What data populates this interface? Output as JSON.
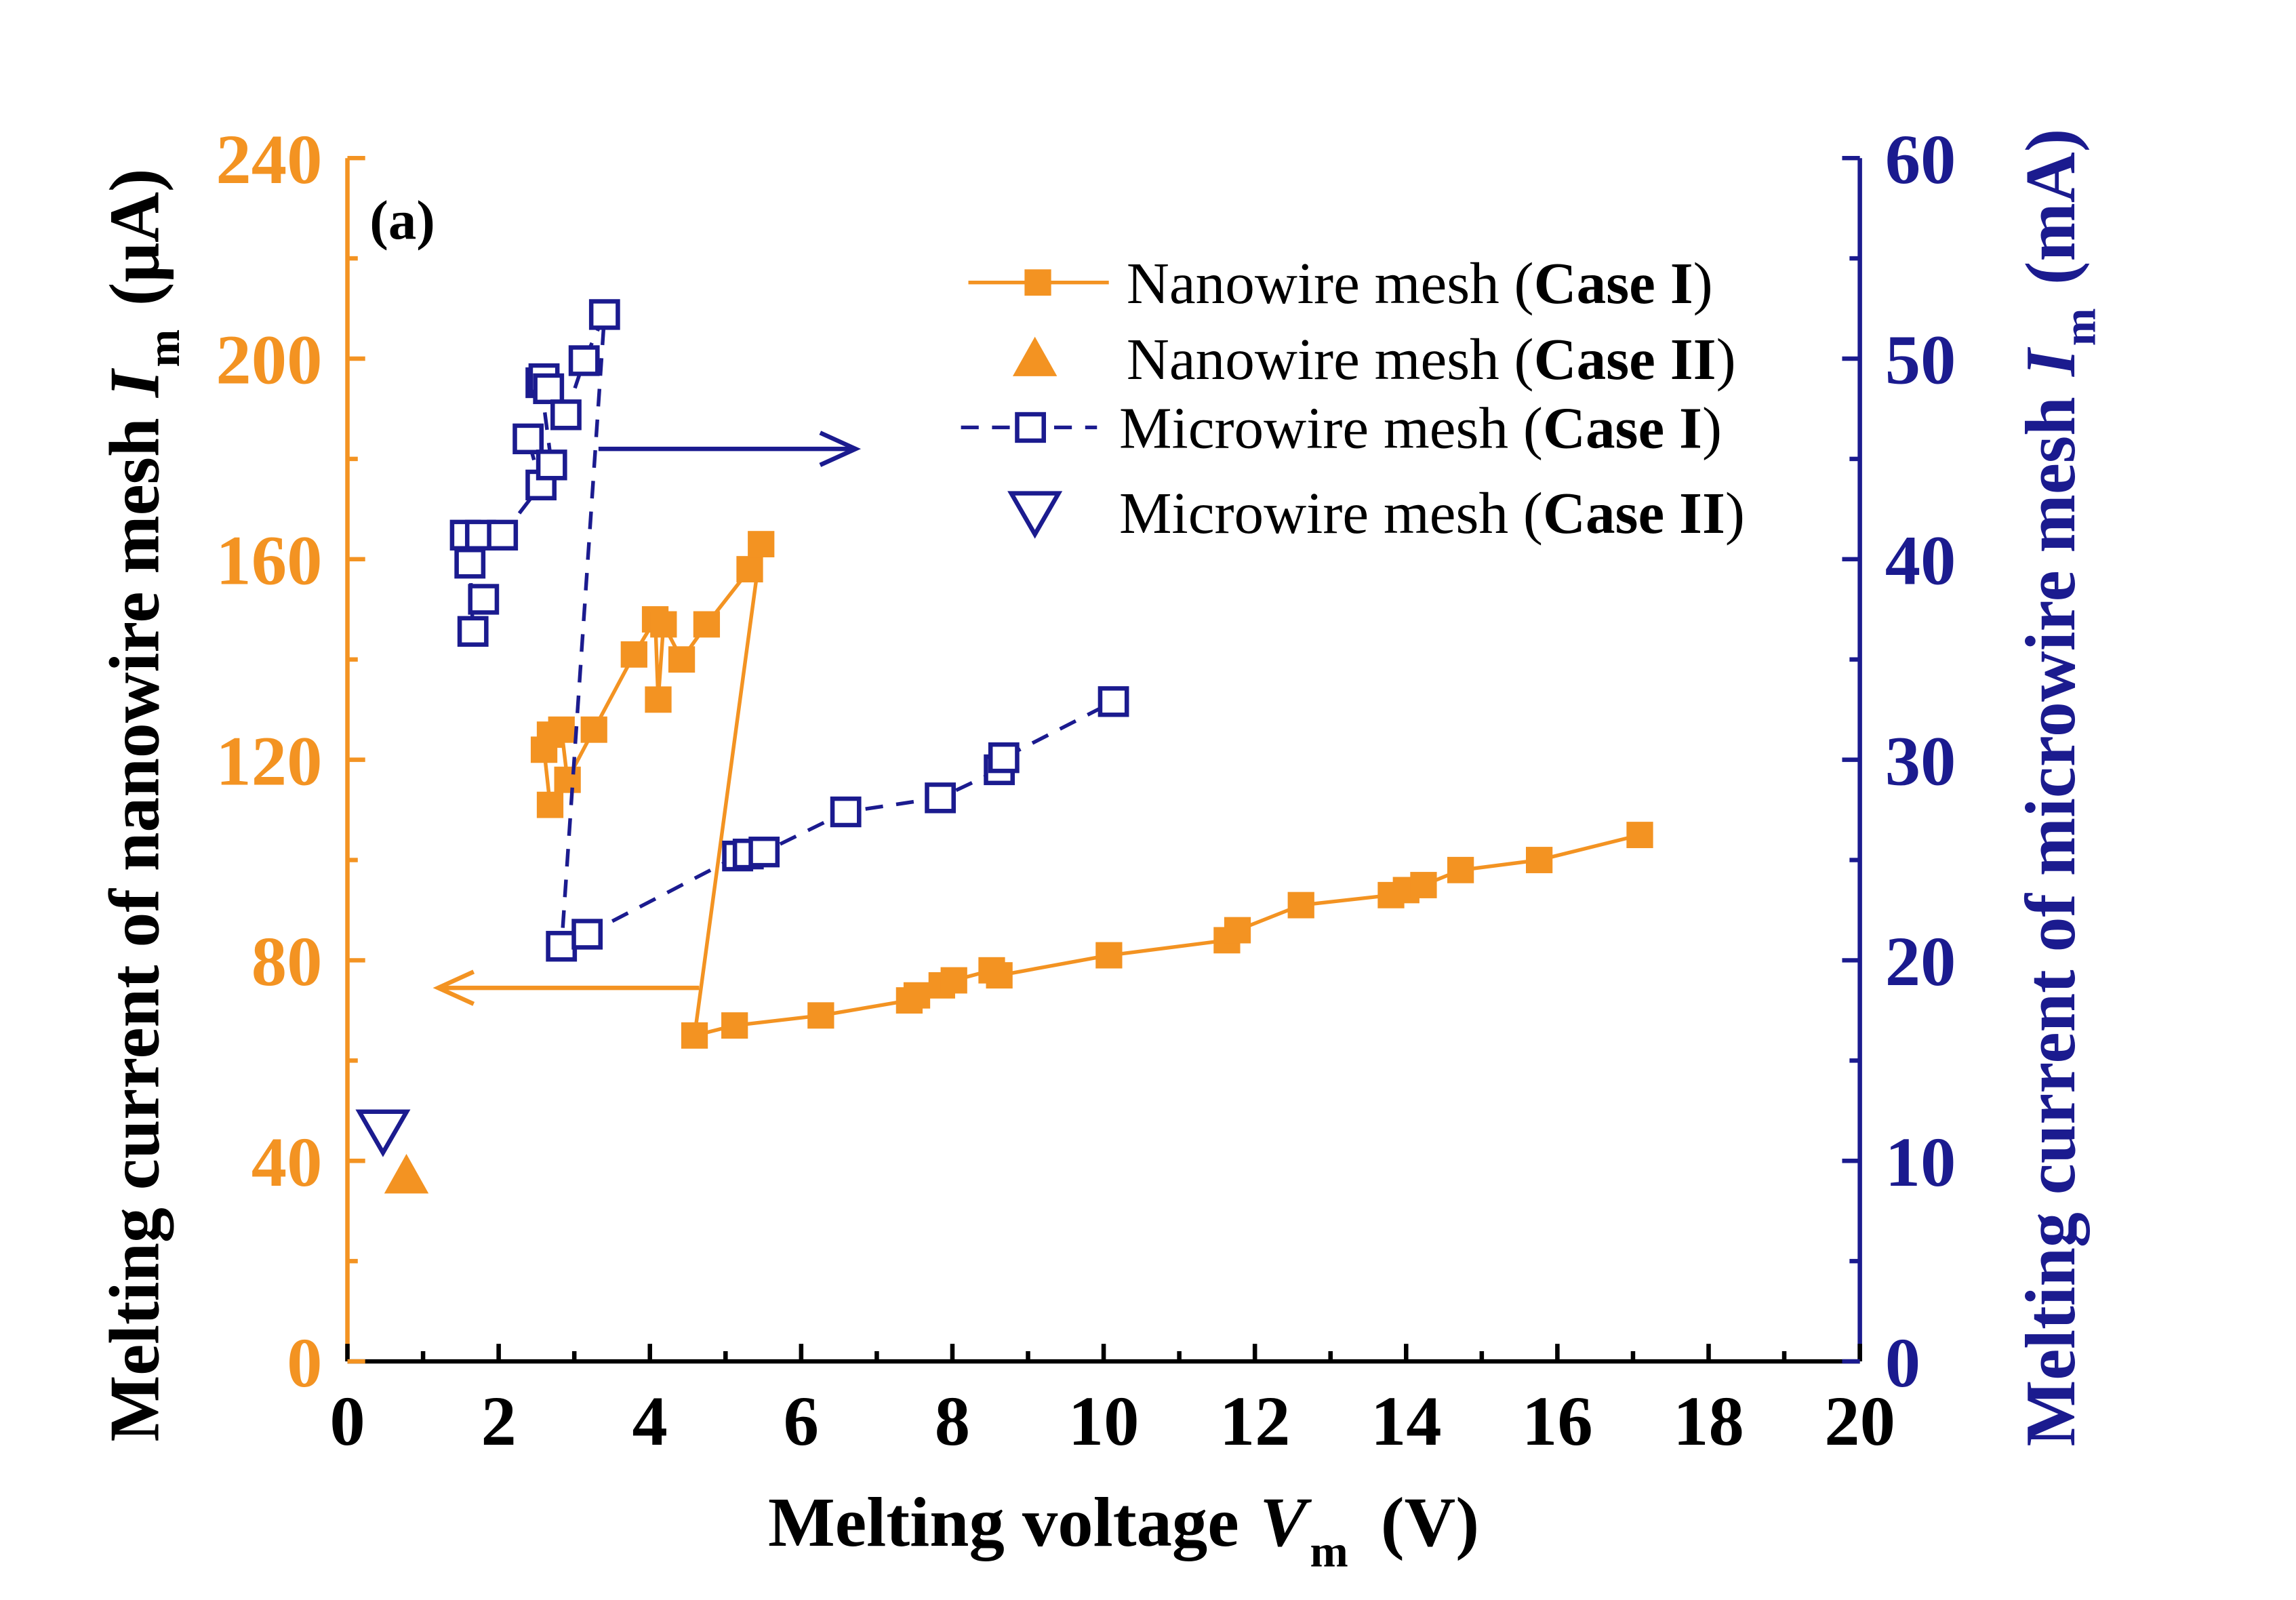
{
  "chart_data": {
    "type": "scatter",
    "panel_label": "(a)",
    "xlabel": {
      "text": "Melting voltage",
      "symbol": "V",
      "sub": "m",
      "unit": "(V)"
    },
    "ylabel_left": {
      "text": "Melting current of nanowire mesh",
      "symbol": "I",
      "sub": "m",
      "unit": "(μA)"
    },
    "ylabel_right": {
      "text": "Melting current of microwire mesh",
      "symbol": "I",
      "sub": "m",
      "unit": "(mA)"
    },
    "xlim": [
      0,
      20
    ],
    "ylim_left": [
      0,
      240
    ],
    "ylim_right": [
      0,
      60
    ],
    "xticks": [
      "0",
      "2",
      "4",
      "6",
      "8",
      "10",
      "12",
      "14",
      "16",
      "18",
      "20"
    ],
    "yticks_left": [
      "0",
      "40",
      "80",
      "120",
      "160",
      "200",
      "240"
    ],
    "yticks_right": [
      "0",
      "10",
      "20",
      "30",
      "40",
      "50",
      "60"
    ],
    "grid": false,
    "legend_position": "top-right",
    "left_axis_color": "#F39322",
    "right_axis_color": "#1B1B8F",
    "bottom_axis_color": "#000000",
    "axis_arrows": [
      {
        "axis": "left",
        "direction": "left",
        "color": "#F39322"
      },
      {
        "axis": "right",
        "direction": "right",
        "color": "#1B1B8F"
      }
    ],
    "series": [
      {
        "name": "Nanowire mesh (Case I)",
        "axis": "left",
        "marker": "filled-square",
        "line": "solid",
        "color": "#F39322",
        "points": [
          [
            2.68,
            111
          ],
          [
            2.6,
            122
          ],
          [
            2.68,
            125
          ],
          [
            2.83,
            126
          ],
          [
            2.91,
            116
          ],
          [
            3.26,
            126
          ],
          [
            3.79,
            141
          ],
          [
            4.07,
            148
          ],
          [
            4.11,
            132
          ],
          [
            4.18,
            147
          ],
          [
            4.42,
            140
          ],
          [
            4.75,
            147
          ],
          [
            5.32,
            158
          ],
          [
            5.47,
            163
          ],
          [
            4.59,
            65
          ],
          [
            5.12,
            67
          ],
          [
            6.26,
            69
          ],
          [
            7.43,
            72
          ],
          [
            7.53,
            73
          ],
          [
            7.86,
            75
          ],
          [
            8.02,
            76
          ],
          [
            8.52,
            78
          ],
          [
            8.62,
            77
          ],
          [
            10.07,
            81
          ],
          [
            11.63,
            84
          ],
          [
            11.77,
            86
          ],
          [
            12.61,
            91
          ],
          [
            13.8,
            93
          ],
          [
            14.0,
            94
          ],
          [
            14.23,
            95
          ],
          [
            14.72,
            98
          ],
          [
            15.76,
            100
          ],
          [
            17.09,
            105
          ]
        ]
      },
      {
        "name": "Nanowire mesh (Case II)",
        "axis": "left",
        "marker": "filled-triangle-up",
        "line": "none",
        "color": "#F39322",
        "points": [
          [
            0.78,
            37
          ]
        ]
      },
      {
        "name": "Microwire mesh (Case I)",
        "axis": "right",
        "marker": "open-square",
        "line": "dashed",
        "color": "#1B1B8F",
        "points": [
          [
            1.66,
            36.4
          ],
          [
            1.62,
            39.8
          ],
          [
            1.56,
            41.2
          ],
          [
            1.8,
            38.0
          ],
          [
            1.76,
            41.2
          ],
          [
            2.05,
            41.2
          ],
          [
            2.56,
            43.7
          ],
          [
            2.39,
            46.0
          ],
          [
            2.7,
            44.7
          ],
          [
            2.56,
            48.8
          ],
          [
            2.6,
            49.0
          ],
          [
            2.66,
            48.5
          ],
          [
            2.89,
            47.2
          ],
          [
            3.13,
            49.9
          ],
          [
            3.4,
            52.2
          ],
          [
            2.83,
            20.7
          ],
          [
            3.17,
            21.3
          ],
          [
            5.16,
            25.2
          ],
          [
            5.3,
            25.3
          ],
          [
            5.51,
            25.4
          ],
          [
            6.59,
            27.4
          ],
          [
            7.84,
            28.1
          ],
          [
            8.62,
            29.5
          ],
          [
            8.68,
            30.1
          ],
          [
            10.13,
            32.9
          ]
        ]
      },
      {
        "name": "Microwire mesh (Case II)",
        "axis": "right",
        "marker": "open-triangle-down",
        "line": "none",
        "color": "#1B1B8F",
        "points": [
          [
            0.47,
            11.5
          ]
        ]
      }
    ]
  }
}
